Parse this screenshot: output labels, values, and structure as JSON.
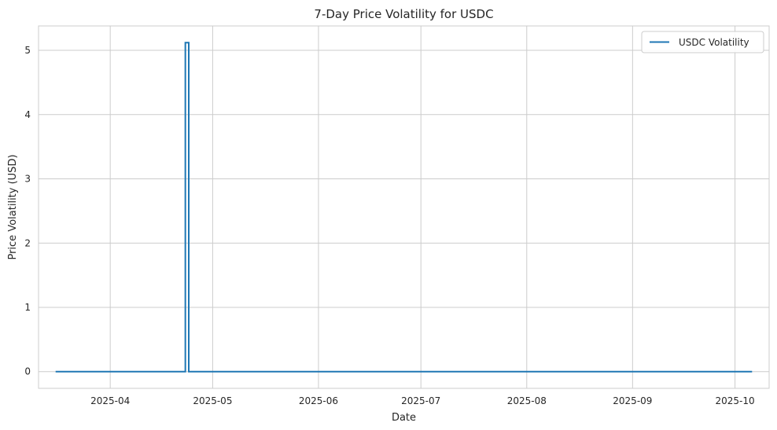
{
  "chart_data": {
    "type": "line",
    "title": "7-Day Price Volatility for USDC",
    "xlabel": "Date",
    "ylabel": "Price Volatility (USD)",
    "x_ticks": [
      "2025-04",
      "2025-05",
      "2025-06",
      "2025-07",
      "2025-08",
      "2025-09",
      "2025-10"
    ],
    "y_ticks": [
      "0",
      "1",
      "2",
      "3",
      "4",
      "5"
    ],
    "xlim": [
      "2025-03-11",
      "2025-10-11"
    ],
    "ylim": [
      -0.26,
      5.38
    ],
    "grid": true,
    "legend_position": "upper right",
    "series": [
      {
        "name": "USDC Volatility",
        "color": "#1f77b4",
        "x": [
          "2025-03-16",
          "2025-04-23",
          "2025-04-23",
          "2025-04-24",
          "2025-04-24",
          "2025-10-06"
        ],
        "y": [
          0.0,
          0.0,
          5.12,
          5.12,
          0.0,
          0.0
        ]
      }
    ]
  }
}
